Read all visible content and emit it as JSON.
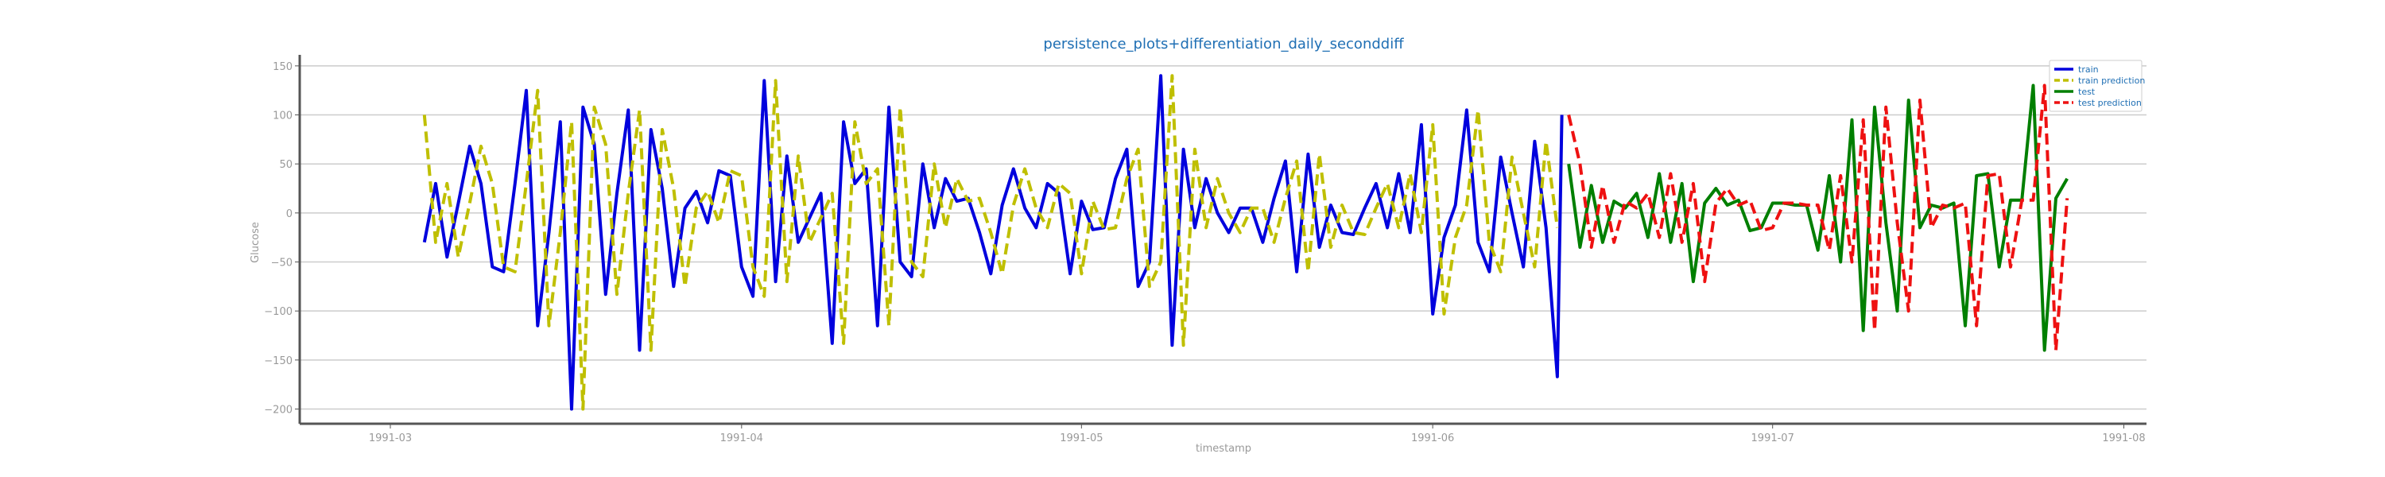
{
  "chart_data": {
    "type": "line",
    "title": "persistence_plots+differentiation_daily_seconddiff",
    "xlabel": "timestamp",
    "ylabel": "Glucose",
    "ylim": [
      -215,
      158
    ],
    "yticks": [
      150,
      100,
      50,
      0,
      -50,
      -100,
      -150,
      -200
    ],
    "ytick_labels": [
      "150",
      "100",
      "50",
      "0",
      "−50",
      "−100",
      "−150",
      "−200"
    ],
    "xlim": [
      "1991-02-21",
      "1991-08-03"
    ],
    "xticks": [
      "1991-03-01",
      "1991-04-01",
      "1991-05-01",
      "1991-06-01",
      "1991-07-01",
      "1991-08-01"
    ],
    "xtick_labels": [
      "1991-03",
      "1991-04",
      "1991-05",
      "1991-06",
      "1991-07",
      "1991-08"
    ],
    "grid": "horizontal",
    "legend_position": "top-right",
    "colors": {
      "train": "#0000dd",
      "train_prediction": "#bfbf00",
      "test": "#007f00",
      "test_prediction": "#ee1111",
      "grid": "#cccccc",
      "axis": "#555555",
      "tick_text": "#999999",
      "title_text": "#1f6fb4"
    },
    "series": [
      {
        "name": "train",
        "key": "train",
        "dash": "solid",
        "width": 4,
        "x": [
          "1991-03-04",
          "1991-03-05",
          "1991-03-06",
          "1991-03-07",
          "1991-03-08",
          "1991-03-09",
          "1991-03-10",
          "1991-03-11",
          "1991-03-12",
          "1991-03-13",
          "1991-03-14",
          "1991-03-15",
          "1991-03-16",
          "1991-03-17",
          "1991-03-18",
          "1991-03-19",
          "1991-03-20",
          "1991-03-21",
          "1991-03-22",
          "1991-03-23",
          "1991-03-24",
          "1991-03-25",
          "1991-03-26",
          "1991-03-27",
          "1991-03-28",
          "1991-03-29",
          "1991-03-30",
          "1991-03-31",
          "1991-04-01",
          "1991-04-02",
          "1991-04-03",
          "1991-04-04",
          "1991-04-05",
          "1991-04-06",
          "1991-04-07",
          "1991-04-08",
          "1991-04-09",
          "1991-04-10",
          "1991-04-11",
          "1991-04-12",
          "1991-04-13",
          "1991-04-14",
          "1991-04-15",
          "1991-04-16",
          "1991-04-17",
          "1991-04-18",
          "1991-04-19",
          "1991-04-20",
          "1991-04-21",
          "1991-04-22",
          "1991-04-23",
          "1991-04-24",
          "1991-04-25",
          "1991-04-26",
          "1991-04-27",
          "1991-04-28",
          "1991-04-29",
          "1991-04-30",
          "1991-05-01",
          "1991-05-02",
          "1991-05-03",
          "1991-05-04",
          "1991-05-05",
          "1991-05-06",
          "1991-05-07",
          "1991-05-08",
          "1991-05-09",
          "1991-05-10",
          "1991-05-11",
          "1991-05-12",
          "1991-05-13",
          "1991-05-14",
          "1991-05-15",
          "1991-05-16",
          "1991-05-17",
          "1991-05-18",
          "1991-05-19",
          "1991-05-20",
          "1991-05-21",
          "1991-05-22",
          "1991-05-23",
          "1991-05-24",
          "1991-05-25",
          "1991-05-26",
          "1991-05-27",
          "1991-05-28",
          "1991-05-29",
          "1991-05-30",
          "1991-05-31",
          "1991-06-01",
          "1991-06-02",
          "1991-06-03",
          "1991-06-04",
          "1991-06-05",
          "1991-06-06",
          "1991-06-07",
          "1991-06-08",
          "1991-06-09",
          "1991-06-10",
          "1991-06-11",
          "1991-06-12"
        ],
        "y": [
          -30,
          30,
          -45,
          10,
          68,
          30,
          -55,
          -60,
          30,
          125,
          -115,
          -20,
          93,
          -200,
          108,
          70,
          -83,
          20,
          105,
          -140,
          85,
          25,
          -75,
          5,
          22,
          -10,
          43,
          38,
          -55,
          -85,
          135,
          -70,
          58,
          -30,
          -5,
          20,
          -133,
          93,
          30,
          45,
          -115,
          108,
          -50,
          -65,
          50,
          -15,
          35,
          12,
          15,
          -20,
          -62,
          8,
          45,
          5,
          -15,
          30,
          20,
          -62,
          12,
          -17,
          -15,
          35,
          65,
          -75,
          -50,
          140,
          -135,
          65,
          -15,
          35,
          0,
          -20,
          5,
          5,
          -30,
          15,
          53,
          -60,
          60,
          -35,
          8,
          -20,
          -22,
          5,
          30,
          -15,
          40,
          -20,
          90,
          -103,
          -25,
          8,
          105,
          -30,
          -60,
          57,
          0,
          -55,
          73,
          -15,
          -167
        ],
        "y_end": 100
      },
      {
        "name": "train prediction",
        "key": "train_prediction",
        "dash": "dashed",
        "width": 4,
        "y": [
          100,
          -30,
          30,
          -45,
          10,
          68,
          30,
          -55,
          -60,
          30,
          125,
          -115,
          -20,
          93,
          -200,
          108,
          70,
          -83,
          20,
          105,
          -140,
          85,
          25,
          -75,
          5,
          22,
          -10,
          43,
          38,
          -55,
          -85,
          135,
          -70,
          58,
          -30,
          -5,
          20,
          -133,
          93,
          30,
          45,
          -115,
          108,
          -50,
          -65,
          50,
          -15,
          35,
          12,
          15,
          -20,
          -62,
          8,
          45,
          5,
          -15,
          30,
          20,
          -62,
          12,
          -17,
          -15,
          35,
          65,
          -75,
          -50,
          140,
          -135,
          65,
          -15,
          35,
          0,
          -20,
          5,
          5,
          -30,
          15,
          53,
          -60,
          60,
          -35,
          8,
          -20,
          -22,
          5,
          30,
          -15,
          40,
          -20,
          90,
          -103,
          -25,
          8,
          105,
          -30,
          -60,
          57,
          0,
          -55,
          73,
          -15,
          -167
        ],
        "x_offset_days": 0
      },
      {
        "name": "test",
        "key": "test",
        "dash": "solid",
        "width": 4,
        "x_start": "1991-06-13",
        "y": [
          50,
          -35,
          28,
          -30,
          12,
          5,
          20,
          -25,
          40,
          -30,
          30,
          -70,
          10,
          25,
          8,
          13,
          -18,
          -15,
          10,
          10,
          8,
          8,
          -38,
          38,
          -50,
          95,
          -120,
          108,
          -10,
          -100,
          115,
          -15,
          8,
          5,
          10,
          -115,
          38,
          40,
          -55,
          13,
          13,
          130,
          -140,
          15,
          35
        ]
      },
      {
        "name": "test prediction",
        "key": "test_prediction",
        "dash": "dashed",
        "width": 4,
        "x_start": "1991-06-13",
        "y": [
          100,
          50,
          -35,
          28,
          -30,
          12,
          5,
          20,
          -25,
          40,
          -30,
          30,
          -70,
          10,
          25,
          8,
          13,
          -18,
          -15,
          10,
          10,
          8,
          8,
          -38,
          38,
          -50,
          95,
          -120,
          108,
          -10,
          -100,
          115,
          -15,
          8,
          5,
          10,
          -115,
          38,
          40,
          -55,
          13,
          13,
          130,
          -140,
          15
        ]
      }
    ],
    "legend": [
      "train",
      "train prediction",
      "test",
      "test prediction"
    ]
  }
}
